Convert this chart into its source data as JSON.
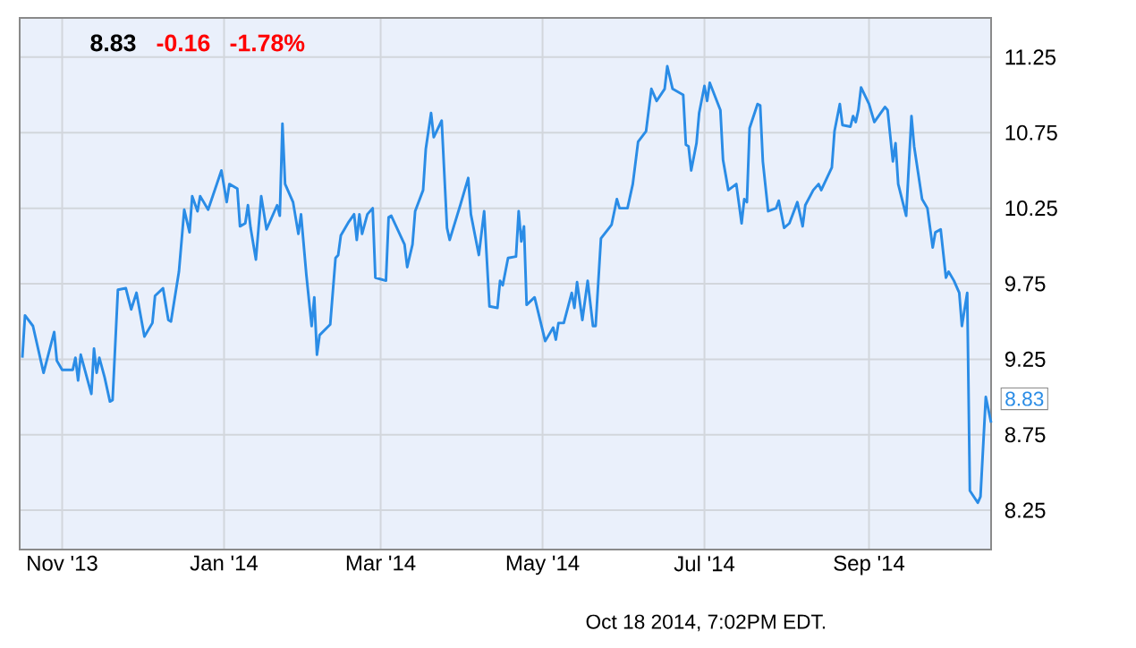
{
  "chart_data": {
    "type": "line",
    "color": "#2a8ce6",
    "x": [
      "2013-10-17",
      "2013-10-18",
      "2013-10-21",
      "2013-10-25",
      "2013-10-29",
      "2013-10-30",
      "2013-11-01",
      "2013-11-05",
      "2013-11-06",
      "2013-11-07",
      "2013-11-08",
      "2013-11-12",
      "2013-11-13",
      "2013-11-14",
      "2013-11-15",
      "2013-11-17",
      "2013-11-19",
      "2013-11-20",
      "2013-11-22",
      "2013-11-25",
      "2013-11-27",
      "2013-11-29",
      "2013-12-02",
      "2013-12-05",
      "2013-12-06",
      "2013-12-09",
      "2013-12-11",
      "2013-12-12",
      "2013-12-15",
      "2013-12-17",
      "2013-12-19",
      "2013-12-20",
      "2013-12-22",
      "2013-12-23",
      "2013-12-26",
      "2013-12-31",
      "2014-01-02",
      "2014-01-03",
      "2014-01-06",
      "2014-01-07",
      "2014-01-09",
      "2014-01-10",
      "2014-01-11",
      "2014-01-13",
      "2014-01-15",
      "2014-01-17",
      "2014-01-21",
      "2014-01-22",
      "2014-01-23",
      "2014-01-24",
      "2014-01-27",
      "2014-01-29",
      "2014-01-30",
      "2014-02-01",
      "2014-02-03",
      "2014-02-04",
      "2014-02-05",
      "2014-02-06",
      "2014-02-10",
      "2014-02-12",
      "2014-02-13",
      "2014-02-14",
      "2014-02-17",
      "2014-02-19",
      "2014-02-20",
      "2014-02-21",
      "2014-02-22",
      "2014-02-24",
      "2014-02-26",
      "2014-02-27",
      "2014-03-03",
      "2014-03-04",
      "2014-03-05",
      "2014-03-10",
      "2014-03-11",
      "2014-03-13",
      "2014-03-14",
      "2014-03-17",
      "2014-03-18",
      "2014-03-20",
      "2014-03-21",
      "2014-03-24",
      "2014-03-26",
      "2014-03-27",
      "2014-03-31",
      "2014-04-03",
      "2014-04-04",
      "2014-04-07",
      "2014-04-09",
      "2014-04-11",
      "2014-04-14",
      "2014-04-15",
      "2014-04-16",
      "2014-04-18",
      "2014-04-21",
      "2014-04-22",
      "2014-04-23",
      "2014-04-24",
      "2014-04-25",
      "2014-04-28",
      "2014-05-02",
      "2014-05-05",
      "2014-05-06",
      "2014-05-07",
      "2014-05-09",
      "2014-05-12",
      "2014-05-13",
      "2014-05-14",
      "2014-05-16",
      "2014-05-18",
      "2014-05-20",
      "2014-05-21",
      "2014-05-23",
      "2014-05-27",
      "2014-05-29",
      "2014-05-30",
      "2014-06-02",
      "2014-06-04",
      "2014-06-06",
      "2014-06-09",
      "2014-06-11",
      "2014-06-13",
      "2014-06-16",
      "2014-06-17",
      "2014-06-19",
      "2014-06-23",
      "2014-06-24",
      "2014-06-25",
      "2014-06-26",
      "2014-06-28",
      "2014-06-29",
      "2014-07-01",
      "2014-07-02",
      "2014-07-03",
      "2014-07-07",
      "2014-07-08",
      "2014-07-10",
      "2014-07-13",
      "2014-07-15",
      "2014-07-16",
      "2014-07-17",
      "2014-07-18",
      "2014-07-21",
      "2014-07-22",
      "2014-07-23",
      "2014-07-25",
      "2014-07-28",
      "2014-07-29",
      "2014-07-31",
      "2014-08-02",
      "2014-08-05",
      "2014-08-07",
      "2014-08-08",
      "2014-08-11",
      "2014-08-13",
      "2014-08-14",
      "2014-08-18",
      "2014-08-19",
      "2014-08-21",
      "2014-08-22",
      "2014-08-25",
      "2014-08-26",
      "2014-08-27",
      "2014-08-28",
      "2014-08-29",
      "2014-09-01",
      "2014-09-03",
      "2014-09-07",
      "2014-09-08",
      "2014-09-10",
      "2014-09-11",
      "2014-09-12",
      "2014-09-15",
      "2014-09-17",
      "2014-09-18",
      "2014-09-21",
      "2014-09-23",
      "2014-09-25",
      "2014-09-26",
      "2014-09-28",
      "2014-09-30",
      "2014-10-01",
      "2014-10-03",
      "2014-10-05",
      "2014-10-06",
      "2014-10-08",
      "2014-10-09",
      "2014-10-12",
      "2014-10-13",
      "2014-10-15",
      "2014-10-17"
    ],
    "values": [
      9.26,
      9.54,
      9.47,
      9.16,
      9.43,
      9.24,
      9.18,
      9.18,
      9.26,
      9.11,
      9.28,
      9.02,
      9.32,
      9.16,
      9.26,
      9.13,
      8.97,
      8.98,
      9.71,
      9.72,
      9.58,
      9.69,
      9.4,
      9.49,
      9.67,
      9.72,
      9.51,
      9.5,
      9.83,
      10.24,
      10.09,
      10.33,
      10.23,
      10.33,
      10.24,
      10.5,
      10.29,
      10.41,
      10.38,
      10.13,
      10.15,
      10.27,
      10.12,
      9.91,
      10.33,
      10.11,
      10.27,
      10.2,
      10.81,
      10.41,
      10.29,
      10.08,
      10.21,
      9.81,
      9.47,
      9.66,
      9.28,
      9.41,
      9.48,
      9.92,
      9.94,
      10.07,
      10.16,
      10.21,
      10.04,
      10.21,
      10.08,
      10.21,
      10.25,
      9.79,
      9.77,
      10.19,
      10.2,
      10.01,
      9.86,
      10.01,
      10.23,
      10.37,
      10.64,
      10.88,
      10.72,
      10.83,
      10.12,
      10.04,
      10.27,
      10.45,
      10.21,
      9.94,
      10.23,
      9.6,
      9.59,
      9.77,
      9.74,
      9.92,
      9.93,
      10.23,
      10.03,
      10.13,
      9.61,
      9.66,
      9.37,
      9.46,
      9.38,
      9.49,
      9.49,
      9.69,
      9.59,
      9.76,
      9.51,
      9.77,
      9.47,
      9.47,
      10.05,
      10.14,
      10.31,
      10.25,
      10.25,
      10.41,
      10.69,
      10.76,
      11.04,
      10.96,
      11.04,
      11.19,
      11.04,
      11.0,
      10.67,
      10.66,
      10.5,
      10.68,
      10.88,
      11.06,
      10.96,
      11.08,
      10.9,
      10.57,
      10.37,
      10.41,
      10.15,
      10.31,
      10.29,
      10.78,
      10.94,
      10.93,
      10.56,
      10.23,
      10.25,
      10.3,
      10.12,
      10.15,
      10.29,
      10.13,
      10.27,
      10.37,
      10.41,
      10.37,
      10.52,
      10.76,
      10.94,
      10.8,
      10.79,
      10.86,
      10.82,
      10.9,
      11.05,
      10.94,
      10.82,
      10.92,
      10.9,
      10.56,
      10.68,
      10.41,
      10.2,
      10.86,
      10.66,
      10.31,
      10.25,
      9.99,
      10.09,
      10.11,
      9.79,
      9.83,
      9.77,
      9.69,
      9.47,
      9.69,
      8.38,
      8.3,
      8.34,
      9.0,
      8.83
    ],
    "xlim": [
      "2013-10-16",
      "2014-10-17"
    ],
    "xticks": [
      {
        "value": "2013-11-01",
        "label": "Nov '13"
      },
      {
        "value": "2014-01-01",
        "label": "Jan '14"
      },
      {
        "value": "2014-03-01",
        "label": "Mar '14"
      },
      {
        "value": "2014-05-01",
        "label": "May '14"
      },
      {
        "value": "2014-07-01",
        "label": "Jul '14"
      },
      {
        "value": "2014-09-01",
        "label": "Sep '14"
      }
    ],
    "ylim": [
      7.99,
      11.51
    ],
    "yticks": [
      8.25,
      8.75,
      9.25,
      9.75,
      10.25,
      10.75,
      11.25
    ],
    "grid": true,
    "marker": "none",
    "line_style": "solid",
    "annotations": [
      "8.83",
      "-0.16",
      "-1.78%",
      "Oct 18 2014, 7:02PM EDT.",
      {
        "text": "8.83",
        "x": "2014-10-17",
        "y": 8.83
      }
    ]
  }
}
